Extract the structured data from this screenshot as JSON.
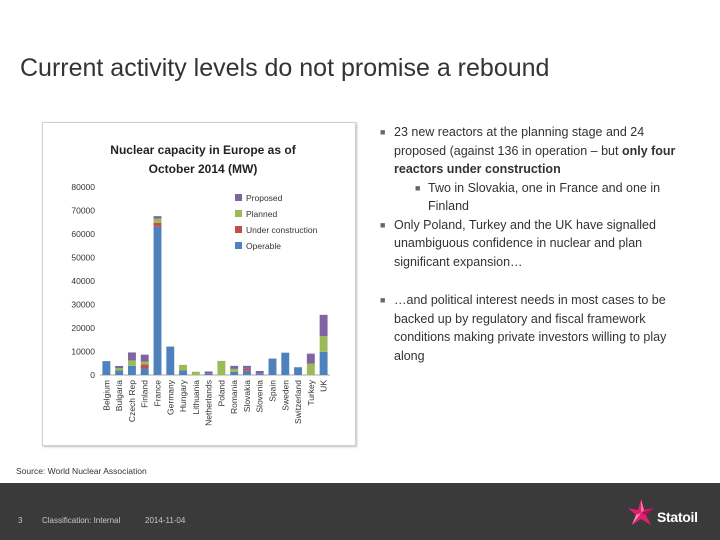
{
  "slide": {
    "title": "Current activity levels do not promise a rebound",
    "source": "Source: World Nuclear Association",
    "bullets": [
      {
        "text": "23 new reactors at the planning stage and 24 proposed (against 136 in operation – but ",
        "bold": "only four reactors under construction"
      },
      {
        "text": "Two in Slovakia, one in France and one in Finland"
      },
      {
        "text": "Only Poland, Turkey and the UK have signalled unambiguous confidence in nuclear and plan significant expansion…"
      },
      {
        "text": "…and political interest needs in most cases to be backed up by regulatory and fiscal framework conditions making private investors willing to play along"
      }
    ]
  },
  "footer": {
    "page_number": "3",
    "classification": "Classification: Internal",
    "date": "2014-11-04",
    "brand": "Statoil"
  },
  "chart_data": {
    "type": "bar",
    "stacked": true,
    "title": "Nuclear capacity in Europe as of October 2014 (MW)",
    "categories": [
      "Belgium",
      "Bulgaria",
      "Czech Rep",
      "Finland",
      "France",
      "Germany",
      "Hungary",
      "Lithuania",
      "Netherlands",
      "Poland",
      "Romania",
      "Slovakia",
      "Slovenia",
      "Spain",
      "Sweden",
      "Switzerland",
      "Turkey",
      "UK"
    ],
    "ylim": [
      0,
      80000
    ],
    "yticks": [
      0,
      10000,
      20000,
      30000,
      40000,
      50000,
      60000,
      70000,
      80000
    ],
    "series": [
      {
        "name": "Operable",
        "color": "#4f81bd",
        "values": [
          5900,
          1900,
          3900,
          2750,
          63100,
          12100,
          1900,
          0,
          490,
          0,
          1300,
          1800,
          700,
          7000,
          9500,
          3300,
          0,
          9900
        ]
      },
      {
        "name": "Under construction",
        "color": "#c0504d",
        "values": [
          0,
          0,
          0,
          1700,
          1700,
          0,
          0,
          0,
          0,
          0,
          0,
          900,
          0,
          0,
          0,
          0,
          0,
          0
        ]
      },
      {
        "name": "Planned",
        "color": "#9bbb59",
        "values": [
          0,
          1000,
          2300,
          1200,
          1700,
          0,
          2400,
          1400,
          0,
          6000,
          1300,
          0,
          0,
          0,
          0,
          0,
          4800,
          6700
        ]
      },
      {
        "name": "Proposed",
        "color": "#8064a2",
        "values": [
          0,
          950,
          3400,
          3000,
          1100,
          0,
          0,
          0,
          1000,
          0,
          1300,
          1200,
          1000,
          0,
          0,
          0,
          4300,
          9000
        ]
      }
    ],
    "legend": [
      "Proposed",
      "Planned",
      "Under construction",
      "Operable"
    ],
    "legend_position": "top-right"
  }
}
